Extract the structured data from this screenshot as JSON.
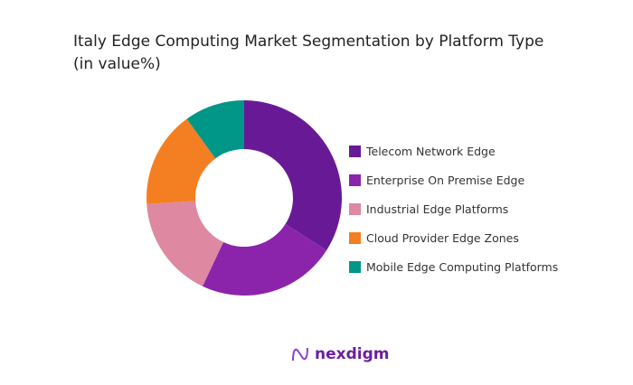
{
  "chart_data": {
    "type": "pie",
    "donut": true,
    "title": "Italy Edge Computing Market Segmentation by Platform Type (in value%)",
    "title_lines": [
      "Italy Edge Computing Market Segmentation by Platform Type",
      "(in value%)"
    ],
    "categories": [
      "Telecom Network Edge",
      "Enterprise On Premise Edge",
      "Industrial Edge Platforms",
      "Cloud Provider Edge Zones",
      "Mobile Edge Computing Platforms"
    ],
    "values": [
      34,
      23,
      17,
      16,
      10
    ],
    "colors": [
      "#681a96",
      "#8b24aa",
      "#de88a2",
      "#f47f22",
      "#009688"
    ],
    "legend_position": "right"
  },
  "brand": {
    "name": "nexdigm"
  }
}
